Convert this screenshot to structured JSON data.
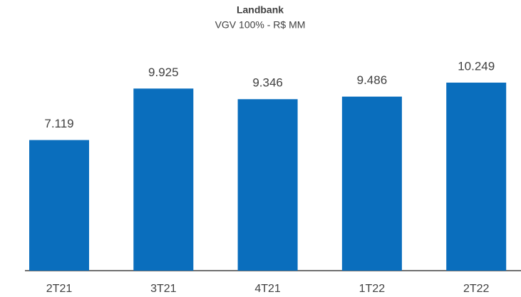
{
  "chart_data": {
    "type": "bar",
    "title": "Landbank",
    "subtitle": "VGV 100% - R$ MM",
    "categories": [
      "2T21",
      "3T21",
      "4T21",
      "1T22",
      "2T22"
    ],
    "values": [
      7119,
      9925,
      9346,
      9486,
      10249
    ],
    "value_labels": [
      "7.119",
      "9.925",
      "9.346",
      "9.486",
      "10.249"
    ],
    "color": "#0a6ebd"
  }
}
